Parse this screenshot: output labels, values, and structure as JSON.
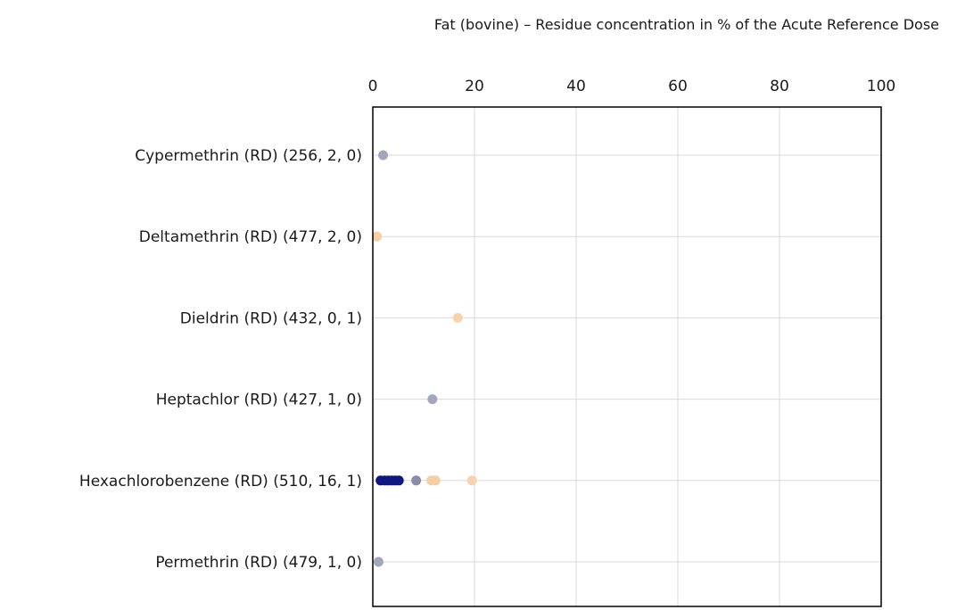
{
  "chart_data": {
    "type": "scatter",
    "title": "Fat (bovine) – Residue concentration in % of the Acute Reference Dose",
    "xlim": [
      0,
      100
    ],
    "x_ticks": [
      0,
      20,
      40,
      60,
      80,
      100
    ],
    "grid": true,
    "categories": [
      "Cypermethrin (RD) (256,  2,  0)",
      "Deltamethrin (RD) (477,  2,  0)",
      "Dieldrin (RD) (432,  0,  1)",
      "Heptachlor (RD) (427,  1,  0)",
      "Hexachlorobenzene (RD) (510,  16,  1)",
      "Permethrin (RD) (479,  1,  0)"
    ],
    "points": [
      {
        "category": 0,
        "x": 1.5,
        "color": "#a3a6bd"
      },
      {
        "category": 1,
        "x": 0.3,
        "color": "#f3cfa3"
      },
      {
        "category": 2,
        "x": 16.2,
        "color": "#f6d4ab"
      },
      {
        "category": 3,
        "x": 11.2,
        "color": "#a3a6bd"
      },
      {
        "category": 4,
        "x": 1.0,
        "color": "#0f1880"
      },
      {
        "category": 4,
        "x": 1.8,
        "color": "#0f1880"
      },
      {
        "category": 4,
        "x": 2.5,
        "color": "#0f1880"
      },
      {
        "category": 4,
        "x": 3.2,
        "color": "#0f1880"
      },
      {
        "category": 4,
        "x": 3.9,
        "color": "#0f1880"
      },
      {
        "category": 4,
        "x": 4.6,
        "color": "#0f1880"
      },
      {
        "category": 4,
        "x": 8.0,
        "color": "#8a8ca8"
      },
      {
        "category": 4,
        "x": 11.0,
        "color": "#f3cfa3"
      },
      {
        "category": 4,
        "x": 11.8,
        "color": "#f3cfa3"
      },
      {
        "category": 4,
        "x": 19.0,
        "color": "#f6d4ab"
      },
      {
        "category": 5,
        "x": 0.6,
        "color": "#a3a6bd"
      }
    ]
  }
}
